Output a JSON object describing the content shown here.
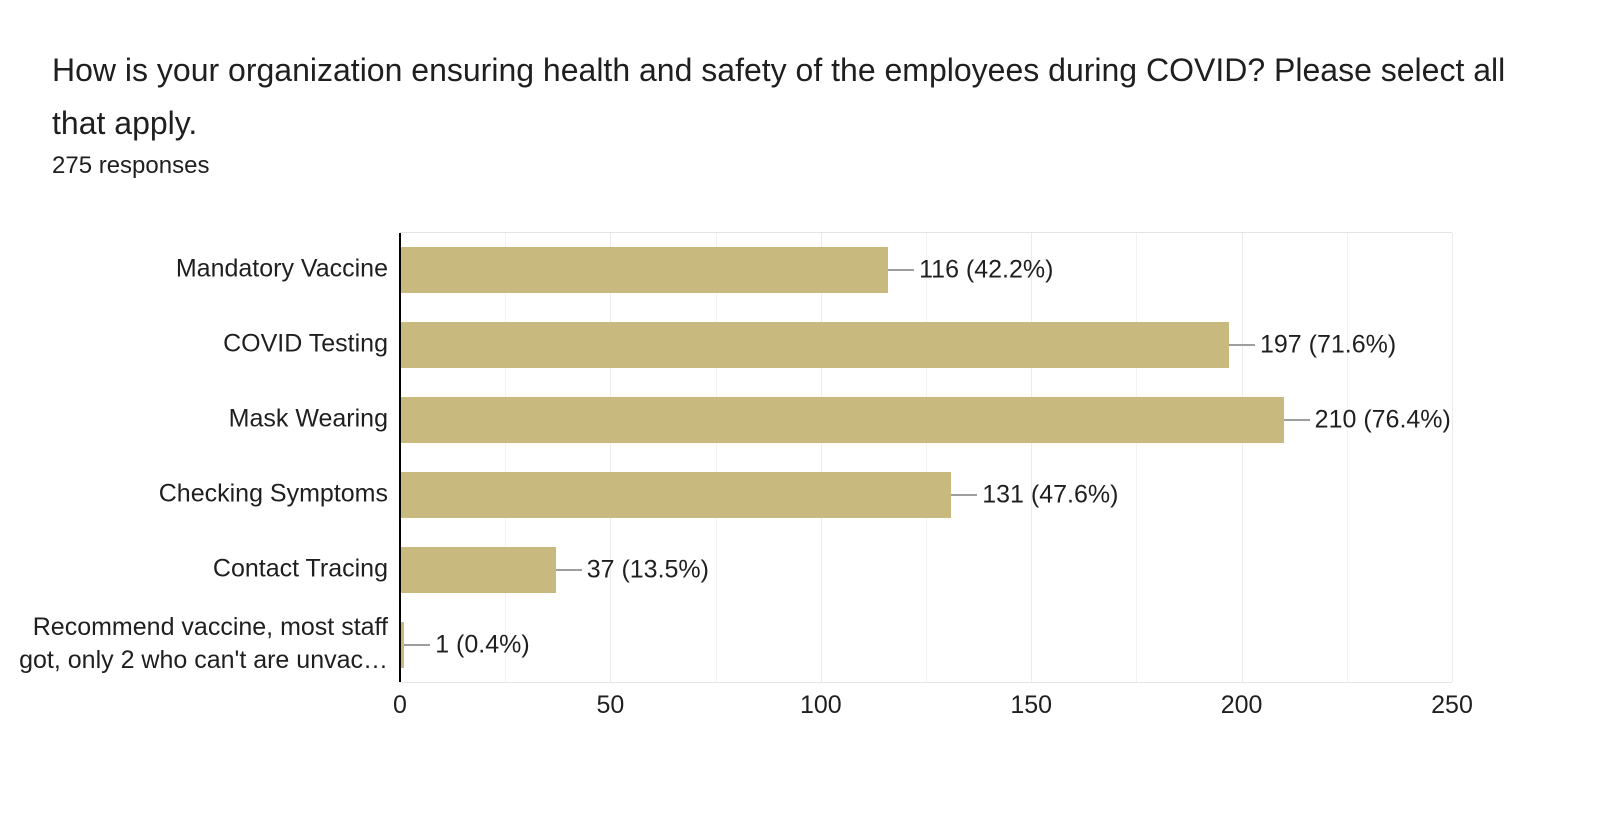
{
  "header": {
    "title": "How is your organization ensuring health and safety of the employees during COVID? Please select all that apply.",
    "responses_count": "275 responses"
  },
  "chart_data": {
    "type": "bar",
    "orientation": "horizontal",
    "title": "How is your organization ensuring health and safety of the employees during COVID? Please select all that apply.",
    "subtitle": "275 responses",
    "total_responses": 275,
    "categories": [
      "Mandatory Vaccine",
      "COVID Testing",
      "Mask Wearing",
      "Checking Symptoms",
      "Contact Tracing",
      "Recommend vaccine, most staff got, only 2 who can't are unvac…"
    ],
    "values": [
      116,
      197,
      210,
      131,
      37,
      1
    ],
    "bar_labels": [
      "116 (42.2%)",
      "197 (71.6%)",
      "210 (76.4%)",
      "131 (47.6%)",
      "37 (13.5%)",
      "1 (0.4%)"
    ],
    "xlim": [
      0,
      250
    ],
    "x_ticks": [
      0,
      50,
      100,
      150,
      200,
      250
    ],
    "grid_interval": 25,
    "grid": true,
    "legend_position": "none",
    "bar_color": "#c8ba7e",
    "leader_color": "#9e9e9e",
    "axis_color": "#000000",
    "gridline_color": "#f2f2f2",
    "text_color": "#1f1f1f"
  }
}
